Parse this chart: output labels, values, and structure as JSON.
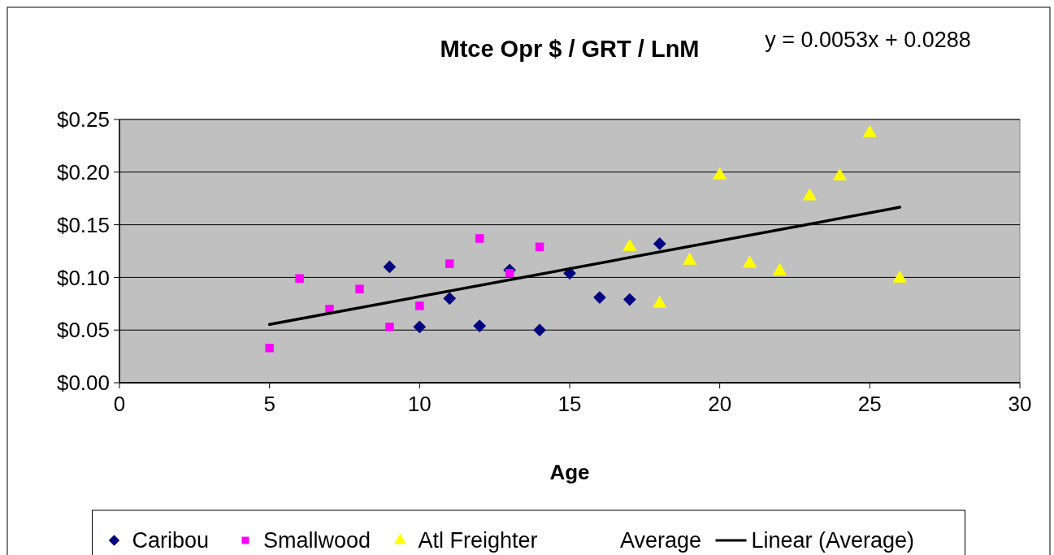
{
  "chart_data": {
    "type": "scatter",
    "title": "Mtce Opr $ / GRT / LnM",
    "xlabel": "Age",
    "annotations": [
      "y = 0.0053x + 0.0288"
    ],
    "xlim": [
      0,
      30
    ],
    "xticks": [
      0,
      5,
      10,
      15,
      20,
      25,
      30
    ],
    "ylim": [
      0,
      0.25
    ],
    "yticks": [
      {
        "value": 0,
        "label": "$0.00"
      },
      {
        "value": 0.05,
        "label": "$0.05"
      },
      {
        "value": 0.1,
        "label": "$0.10"
      },
      {
        "value": 0.15,
        "label": "$0.15"
      },
      {
        "value": 0.2,
        "label": "$0.20"
      },
      {
        "value": 0.25,
        "label": "$0.25"
      }
    ],
    "grid": "y",
    "legend": "bottom",
    "series": [
      {
        "name": "Caribou",
        "color": "#000080",
        "marker": "diamond",
        "x": [
          9,
          10,
          11,
          12,
          13,
          14,
          15,
          16,
          17,
          18
        ],
        "values": [
          0.11,
          0.053,
          0.08,
          0.054,
          0.107,
          0.05,
          0.104,
          0.081,
          0.079,
          0.132
        ]
      },
      {
        "name": "Smallwood",
        "color": "#ff00ff",
        "marker": "square",
        "x": [
          5,
          6,
          7,
          8,
          9,
          10,
          11,
          12,
          13,
          14
        ],
        "values": [
          0.033,
          0.099,
          0.07,
          0.089,
          0.053,
          0.073,
          0.113,
          0.137,
          0.104,
          0.129
        ]
      },
      {
        "name": "Atl Freighter",
        "color": "#ffff00",
        "marker": "triangle",
        "x": [
          17,
          18,
          19,
          20,
          21,
          22,
          23,
          24,
          25,
          26
        ],
        "values": [
          0.129,
          0.075,
          0.116,
          0.197,
          0.113,
          0.106,
          0.177,
          0.196,
          0.237,
          0.099
        ]
      },
      {
        "name": "Average",
        "marker": "none"
      },
      {
        "name": "Linear (Average)",
        "type": "line",
        "color": "#000000",
        "marker": "none",
        "line_style": "solid",
        "x": [
          5,
          26
        ],
        "values": [
          0.0553,
          0.1666
        ]
      }
    ]
  }
}
